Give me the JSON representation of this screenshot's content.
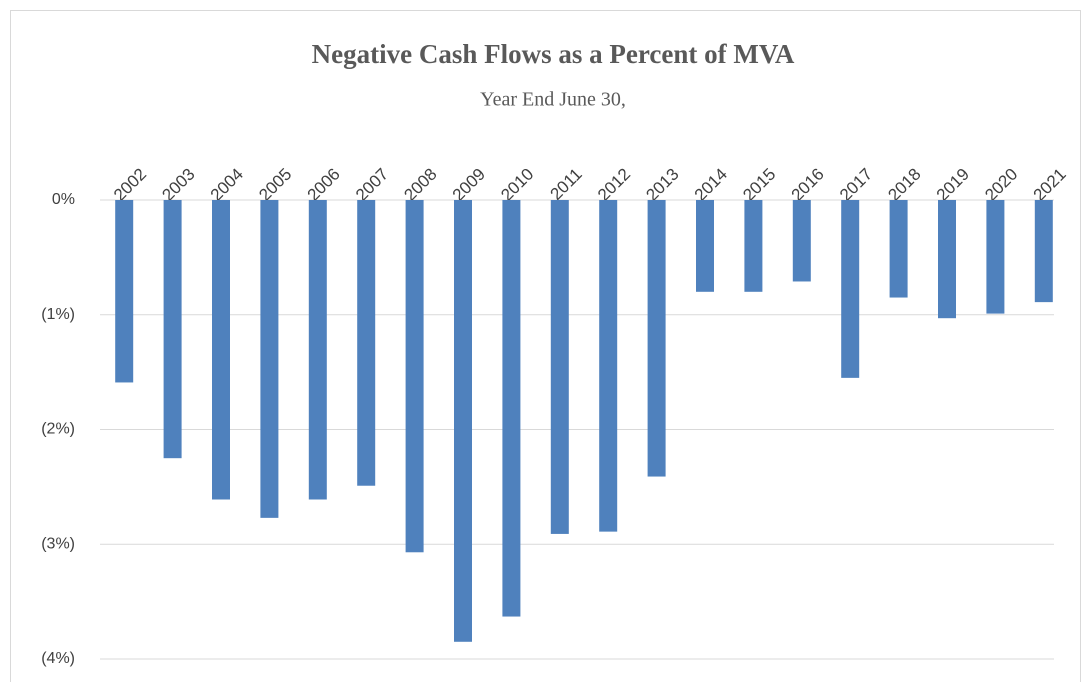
{
  "chart_data": {
    "type": "bar",
    "title": "Negative Cash Flows  as a Percent of MVA",
    "subtitle": "Year End June 30,",
    "categories": [
      "2002",
      "2003",
      "2004",
      "2005",
      "2006",
      "2007",
      "2008",
      "2009",
      "2010",
      "2011",
      "2012",
      "2013",
      "2014",
      "2015",
      "2016",
      "2017",
      "2018",
      "2019",
      "2020",
      "2021"
    ],
    "values": [
      -1.59,
      -2.25,
      -2.61,
      -2.77,
      -2.61,
      -2.49,
      -3.07,
      -3.85,
      -3.63,
      -2.91,
      -2.89,
      -2.41,
      -0.8,
      -0.8,
      -0.71,
      -1.55,
      -0.85,
      -1.03,
      -0.99,
      -0.89
    ],
    "color": "#4f81bd",
    "ylim": [
      -4,
      0
    ],
    "yticks": [
      {
        "value": 0,
        "label": "0%"
      },
      {
        "value": -1,
        "label": "(1%)"
      },
      {
        "value": -2,
        "label": "(2%)"
      },
      {
        "value": -3,
        "label": "(3%)"
      },
      {
        "value": -4,
        "label": "(4%)"
      }
    ],
    "grid": true
  }
}
